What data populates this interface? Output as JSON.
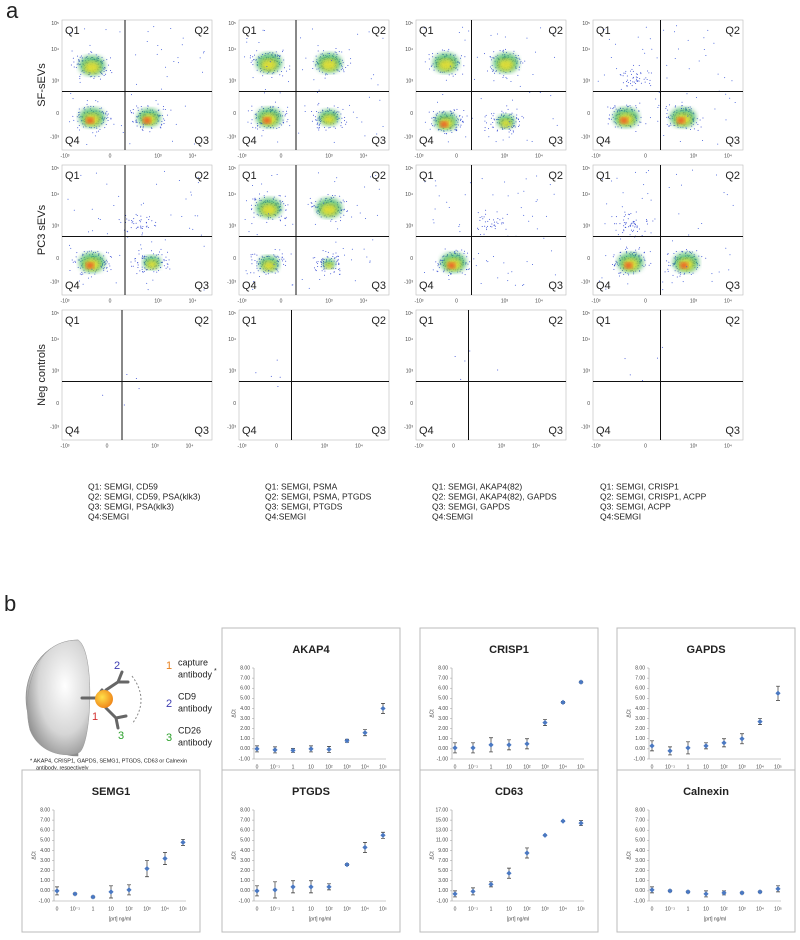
{
  "panel_a": {
    "label": "a",
    "row_labels": [
      "SF-sEVs",
      "PC3 sEVs",
      "Neg controls"
    ],
    "quadrants": [
      "Q1",
      "Q2",
      "Q3",
      "Q4"
    ],
    "y_ticks": [
      "10⁵",
      "10⁴",
      "10³",
      "0",
      "-10³"
    ],
    "x_ticks": [
      "-10³",
      "0",
      "10³",
      "10⁴"
    ],
    "legends": [
      [
        "Q1: SEMGI, CD59",
        "Q2: SEMGI, CD59, PSA(klk3)",
        "Q3: SEMGI,  PSA(klk3)",
        "Q4:SEMGI"
      ],
      [
        "Q1: SEMGI, PSMA",
        "Q2: SEMGI, PSMA, PTGDS",
        "Q3: SEMGI,  PTGDS",
        "Q4:SEMGI"
      ],
      [
        "Q1: SEMGI, AKAP4(82)",
        "Q2: SEMGI, AKAP4(82), GAPDS",
        "Q3: SEMGI,  GAPDS",
        "Q4:SEMGI"
      ],
      [
        "Q1: SEMGI, CRISP1",
        "Q2: SEMGI, CRISP1, ACPP",
        "Q3: SEMGI,  ACPP",
        "Q4:SEMGI"
      ]
    ]
  },
  "panel_b": {
    "label": "b",
    "diagram": {
      "numbers": [
        "1",
        "2",
        "3"
      ],
      "capture": [
        "capture",
        "antibody"
      ],
      "asterisk": "*",
      "cd9": [
        "CD9",
        "antibody"
      ],
      "cd26": [
        "CD26",
        "antibody"
      ],
      "footnote": [
        "* AKAP4, CRISP1, GAPDS, SEMG1, PTGDS, CD63 or Calnexin",
        "antibody, respectively"
      ]
    },
    "charts": [
      {
        "type": "errorbar",
        "title": "AKAP4",
        "color": "#4a78c2",
        "x_label": "[prt] ng/ml",
        "y_label": "ΔCt",
        "categories": [
          "0",
          "10⁻¹",
          "1",
          "10",
          "10²",
          "10³",
          "10⁴",
          "10⁵"
        ],
        "values": [
          0.0,
          -0.1,
          -0.15,
          0.0,
          -0.05,
          0.8,
          1.6,
          4.0
        ],
        "errors": [
          0.3,
          0.3,
          0.2,
          0.3,
          0.3,
          0.15,
          0.3,
          0.5
        ],
        "ylim": [
          -1,
          8
        ],
        "yticks": [
          {
            "value": -1,
            "label": "-1.00"
          },
          {
            "value": 0,
            "label": "0.00"
          },
          {
            "value": 1,
            "label": "1.00"
          },
          {
            "value": 2,
            "label": "2.00"
          },
          {
            "value": 3,
            "label": "3.00"
          },
          {
            "value": 4,
            "label": "4.00"
          },
          {
            "value": 5,
            "label": "5.00"
          },
          {
            "value": 6,
            "label": "6.00"
          },
          {
            "value": 7,
            "label": "7.00"
          },
          {
            "value": 8,
            "label": "8.00"
          }
        ]
      },
      {
        "type": "errorbar",
        "title": "CRISP1",
        "color": "#4a78c2",
        "x_label": "[prt] ng/ml",
        "y_label": "ΔCt",
        "categories": [
          "0",
          "10⁻¹",
          "1",
          "10",
          "10²",
          "10³",
          "10⁴",
          "10⁵"
        ],
        "values": [
          0.1,
          0.1,
          0.4,
          0.4,
          0.5,
          2.6,
          4.6,
          6.6
        ],
        "errors": [
          0.5,
          0.5,
          0.7,
          0.5,
          0.5,
          0.3,
          0.1,
          0.1
        ],
        "ylim": [
          -1,
          8
        ],
        "yticks": [
          {
            "value": -1,
            "label": "-1.00"
          },
          {
            "value": 0,
            "label": "0.00"
          },
          {
            "value": 1,
            "label": "1.00"
          },
          {
            "value": 2,
            "label": "2.00"
          },
          {
            "value": 3,
            "label": "3.00"
          },
          {
            "value": 4,
            "label": "4.00"
          },
          {
            "value": 5,
            "label": "5.00"
          },
          {
            "value": 6,
            "label": "6.00"
          },
          {
            "value": 7,
            "label": "7.00"
          },
          {
            "value": 8,
            "label": "8.00"
          }
        ]
      },
      {
        "type": "errorbar",
        "title": "GAPDS",
        "color": "#4a78c2",
        "x_label": "[prt] ng/ml",
        "y_label": "ΔCt",
        "categories": [
          "0",
          "10⁻¹",
          "1",
          "10",
          "10²",
          "10³",
          "10⁴",
          "10⁵"
        ],
        "values": [
          0.3,
          -0.2,
          0.1,
          0.3,
          0.6,
          1.0,
          2.7,
          5.5
        ],
        "errors": [
          0.5,
          0.4,
          0.6,
          0.3,
          0.4,
          0.5,
          0.3,
          0.7
        ],
        "ylim": [
          -1,
          8
        ],
        "yticks": [
          {
            "value": -1,
            "label": "-1.00"
          },
          {
            "value": 0,
            "label": "0.00"
          },
          {
            "value": 1,
            "label": "1.00"
          },
          {
            "value": 2,
            "label": "2.00"
          },
          {
            "value": 3,
            "label": "3.00"
          },
          {
            "value": 4,
            "label": "4.00"
          },
          {
            "value": 5,
            "label": "5.00"
          },
          {
            "value": 6,
            "label": "6.00"
          },
          {
            "value": 7,
            "label": "7.00"
          },
          {
            "value": 8,
            "label": "8.00"
          }
        ]
      },
      {
        "type": "errorbar",
        "title": "SEMG1",
        "color": "#4a78c2",
        "x_label": "[prt] ng/ml",
        "y_label": "ΔCt",
        "categories": [
          "0",
          "10⁻¹",
          "1",
          "10",
          "10²",
          "10³",
          "10⁴",
          "10⁵"
        ],
        "values": [
          0.0,
          -0.3,
          -0.6,
          -0.1,
          0.1,
          2.2,
          3.2,
          4.8
        ],
        "errors": [
          0.4,
          0.1,
          0.1,
          0.6,
          0.5,
          0.8,
          0.6,
          0.3
        ],
        "ylim": [
          -1,
          8
        ],
        "yticks": [
          {
            "value": -1,
            "label": "-1.00"
          },
          {
            "value": 0,
            "label": "0.00"
          },
          {
            "value": 1,
            "label": "1.00"
          },
          {
            "value": 2,
            "label": "2.00"
          },
          {
            "value": 3,
            "label": "3.00"
          },
          {
            "value": 4,
            "label": "4.00"
          },
          {
            "value": 5,
            "label": "5.00"
          },
          {
            "value": 6,
            "label": "6.00"
          },
          {
            "value": 7,
            "label": "7.00"
          },
          {
            "value": 8,
            "label": "8.00"
          }
        ]
      },
      {
        "type": "errorbar",
        "title": "PTGDS",
        "color": "#4a78c2",
        "x_label": "[prt] ng/ml",
        "y_label": "ΔCt",
        "categories": [
          "0",
          "10⁻¹",
          "1",
          "10",
          "10²",
          "10³",
          "10⁴",
          "10⁵"
        ],
        "values": [
          0.0,
          0.1,
          0.4,
          0.4,
          0.4,
          2.6,
          4.3,
          5.5
        ],
        "errors": [
          0.5,
          0.8,
          0.6,
          0.6,
          0.3,
          0.1,
          0.5,
          0.3
        ],
        "ylim": [
          -1,
          8
        ],
        "yticks": [
          {
            "value": -1,
            "label": "-1.00"
          },
          {
            "value": 0,
            "label": "0.00"
          },
          {
            "value": 1,
            "label": "1.00"
          },
          {
            "value": 2,
            "label": "2.00"
          },
          {
            "value": 3,
            "label": "3.00"
          },
          {
            "value": 4,
            "label": "4.00"
          },
          {
            "value": 5,
            "label": "5.00"
          },
          {
            "value": 6,
            "label": "6.00"
          },
          {
            "value": 7,
            "label": "7.00"
          },
          {
            "value": 8,
            "label": "8.00"
          }
        ]
      },
      {
        "type": "errorbar",
        "title": "CD63",
        "color": "#4a78c2",
        "x_label": "[prt] ng/ml",
        "y_label": "ΔCt",
        "categories": [
          "0",
          "10⁻¹",
          "1",
          "10",
          "10²",
          "10³",
          "10⁴",
          "10⁵"
        ],
        "values": [
          0.4,
          0.9,
          2.3,
          4.5,
          8.5,
          12.0,
          14.8,
          14.4
        ],
        "errors": [
          0.6,
          0.7,
          0.5,
          1.0,
          1.0,
          0.1,
          0.1,
          0.5
        ],
        "ylim": [
          -1,
          17
        ],
        "yticks": [
          {
            "value": -1,
            "label": "-1.00"
          },
          {
            "value": 1,
            "label": "1.00"
          },
          {
            "value": 3,
            "label": "3.00"
          },
          {
            "value": 5,
            "label": "5.00"
          },
          {
            "value": 7,
            "label": "7.00"
          },
          {
            "value": 9,
            "label": "9.00"
          },
          {
            "value": 11,
            "label": "11.00"
          },
          {
            "value": 13,
            "label": "13.00"
          },
          {
            "value": 15,
            "label": "15.00"
          },
          {
            "value": 17,
            "label": "17.00"
          }
        ]
      },
      {
        "type": "errorbar",
        "title": "Calnexin",
        "color": "#4a78c2",
        "x_label": "[prt] ng/ml",
        "y_label": "ΔCt",
        "categories": [
          "0",
          "10⁻¹",
          "1",
          "10",
          "10²",
          "10³",
          "10⁴",
          "10⁵"
        ],
        "values": [
          0.1,
          0.0,
          -0.1,
          -0.3,
          -0.2,
          -0.2,
          -0.1,
          0.2
        ],
        "errors": [
          0.3,
          0.1,
          0.1,
          0.3,
          0.2,
          0.1,
          0.1,
          0.3
        ],
        "ylim": [
          -1,
          8
        ],
        "yticks": [
          {
            "value": -1,
            "label": "-1.00"
          },
          {
            "value": 0,
            "label": "0.00"
          },
          {
            "value": 1,
            "label": "1.00"
          },
          {
            "value": 2,
            "label": "2.00"
          },
          {
            "value": 3,
            "label": "3.00"
          },
          {
            "value": 4,
            "label": "4.00"
          },
          {
            "value": 5,
            "label": "5.00"
          },
          {
            "value": 6,
            "label": "6.00"
          },
          {
            "value": 7,
            "label": "7.00"
          },
          {
            "value": 8,
            "label": "8.00"
          }
        ]
      }
    ]
  }
}
